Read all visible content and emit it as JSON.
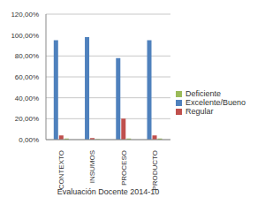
{
  "chart_data": {
    "type": "bar",
    "x_label": "Evaluación Docente 2014-10",
    "categories": [
      "CONTEXTO",
      "INSUMOS",
      "PROCESO",
      "PRODUCTO"
    ],
    "series": [
      {
        "name": "Excelente/Bueno",
        "color": "#4f81bd",
        "values": [
          95,
          98,
          78,
          95
        ]
      },
      {
        "name": "Regular",
        "color": "#c0504d",
        "values": [
          4,
          1.5,
          20,
          4
        ]
      },
      {
        "name": "Deficiente",
        "color": "#9bbb59",
        "values": [
          1,
          0.5,
          1,
          1
        ]
      }
    ],
    "ylim": [
      0,
      120
    ],
    "yticks": [
      {
        "value": 0,
        "label": "0,00%"
      },
      {
        "value": 20,
        "label": "20,00%"
      },
      {
        "value": 40,
        "label": "40,00%"
      },
      {
        "value": 60,
        "label": "60,00%"
      },
      {
        "value": 80,
        "label": "80,00%"
      },
      {
        "value": 100,
        "label": "100,00%"
      },
      {
        "value": 120,
        "label": "120,00%"
      }
    ],
    "grid": true,
    "legend": "right"
  }
}
